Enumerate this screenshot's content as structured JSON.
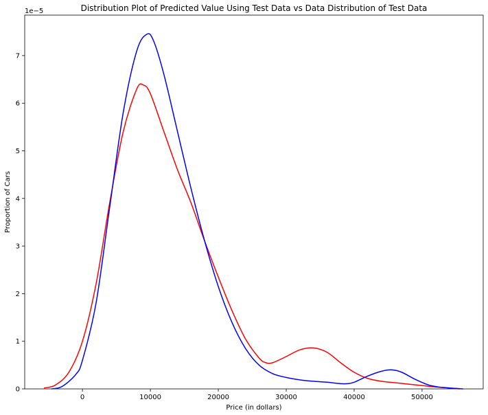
{
  "chart_data": {
    "type": "line",
    "title": "Distribution  Plot of  Predicted Value Using Test Data vs Data Distribution of Test Data",
    "xlabel": "Price (in dollars)",
    "ylabel": "Proportion of Cars",
    "y_offset_label": "1e−5",
    "xlim": [
      -8500,
      59000
    ],
    "ylim": [
      0,
      7.85
    ],
    "y_scale_factor": 1e-05,
    "grid": false,
    "legend": "none",
    "x_ticks": [
      0,
      10000,
      20000,
      30000,
      40000,
      50000
    ],
    "x_tick_labels": [
      "0",
      "10000",
      "20000",
      "30000",
      "40000",
      "50000"
    ],
    "y_ticks": [
      0,
      1,
      2,
      3,
      4,
      5,
      6,
      7
    ],
    "y_tick_labels": [
      "0",
      "1",
      "2",
      "3",
      "4",
      "5",
      "6",
      "7"
    ],
    "series": [
      {
        "color": "#ff0000",
        "x": [
          -5600,
          -4000,
          -2000,
          0,
          2000,
          4000,
          6000,
          8000,
          9000,
          10000,
          12000,
          14000,
          16000,
          18000,
          20000,
          22000,
          24000,
          26000,
          27000,
          28000,
          30000,
          32000,
          34000,
          36000,
          38000,
          40000,
          42000,
          44000,
          46000,
          48000,
          50000,
          52000,
          54000,
          55500
        ],
        "y": [
          0.02,
          0.08,
          0.35,
          1.0,
          2.2,
          3.9,
          5.4,
          6.3,
          6.38,
          6.2,
          5.4,
          4.6,
          3.9,
          3.1,
          2.35,
          1.65,
          1.05,
          0.65,
          0.55,
          0.55,
          0.68,
          0.82,
          0.86,
          0.77,
          0.55,
          0.35,
          0.22,
          0.16,
          0.13,
          0.1,
          0.07,
          0.04,
          0.02,
          0.0
        ]
      },
      {
        "color": "#0000ff",
        "x": [
          -4500,
          -3000,
          -1000,
          0,
          2000,
          4000,
          6000,
          8000,
          9500,
          10500,
          12000,
          14000,
          16000,
          18000,
          20000,
          22000,
          24000,
          26000,
          28000,
          30000,
          32000,
          34000,
          36000,
          38000,
          39000,
          40000,
          42000,
          44000,
          45500,
          47000,
          49000,
          51000,
          53000,
          55000,
          56000
        ],
        "y": [
          0.0,
          0.05,
          0.3,
          0.6,
          1.8,
          3.8,
          5.8,
          7.1,
          7.45,
          7.3,
          6.6,
          5.4,
          4.2,
          3.1,
          2.15,
          1.4,
          0.85,
          0.5,
          0.32,
          0.24,
          0.19,
          0.16,
          0.14,
          0.11,
          0.11,
          0.14,
          0.27,
          0.37,
          0.4,
          0.35,
          0.2,
          0.08,
          0.03,
          0.01,
          0.0
        ]
      }
    ]
  }
}
